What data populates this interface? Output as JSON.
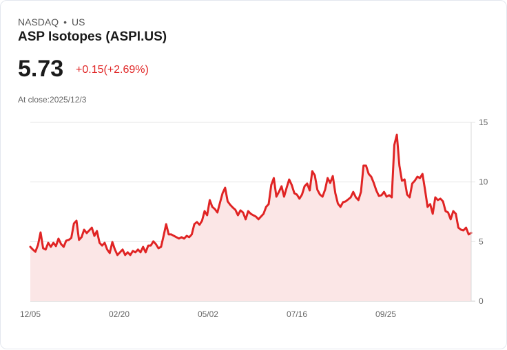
{
  "header": {
    "exchange": "NASDAQ",
    "separator": "•",
    "country": "US",
    "title": "ASP Isotopes (ASPI.US)",
    "price": "5.73",
    "change": "+0.15(+2.69%)",
    "close_label": "At close:2025/12/3"
  },
  "colors": {
    "line": "#e02424",
    "fill": "#fbe6e6",
    "up": "#e02424"
  },
  "chart_data": {
    "type": "area",
    "title": "ASP Isotopes (ASPI.US)",
    "xlabel": "",
    "ylabel": "",
    "ylim": [
      0,
      15
    ],
    "yticks": [
      "15",
      "10",
      "5",
      "0"
    ],
    "ytick_values": [
      15,
      10,
      5,
      0
    ],
    "xticks": [
      "12/05",
      "02/20",
      "05/02",
      "07/16",
      "09/25"
    ],
    "xtick_positions": [
      0,
      0.2016,
      0.4031,
      0.6047,
      0.8063
    ],
    "grid": true,
    "values": [
      4.56,
      4.33,
      4.15,
      4.73,
      5.77,
      4.44,
      4.33,
      4.9,
      4.56,
      4.9,
      4.62,
      5.25,
      4.79,
      4.56,
      5.08,
      5.14,
      5.31,
      6.52,
      6.75,
      5.14,
      5.37,
      6.0,
      5.71,
      5.94,
      6.17,
      5.48,
      5.89,
      4.9,
      4.67,
      4.9,
      4.33,
      4.04,
      4.96,
      4.33,
      3.87,
      4.1,
      4.33,
      3.87,
      4.1,
      3.87,
      4.21,
      4.1,
      4.33,
      4.1,
      4.56,
      4.1,
      4.67,
      4.67,
      5.02,
      4.79,
      4.44,
      4.56,
      5.48,
      6.46,
      5.6,
      5.6,
      5.48,
      5.37,
      5.25,
      5.37,
      5.25,
      5.48,
      5.37,
      5.6,
      6.46,
      6.64,
      6.41,
      6.75,
      7.56,
      7.21,
      8.48,
      7.91,
      7.73,
      7.44,
      8.25,
      9.06,
      9.52,
      8.37,
      8.08,
      7.85,
      7.67,
      7.21,
      7.62,
      7.44,
      6.87,
      7.56,
      7.33,
      7.21,
      7.1,
      6.87,
      7.1,
      7.33,
      7.91,
      8.14,
      9.75,
      10.33,
      8.77,
      9.17,
      9.64,
      8.77,
      9.52,
      10.21,
      9.75,
      9.06,
      8.94,
      8.6,
      8.94,
      9.64,
      9.87,
      9.29,
      10.91,
      10.56,
      9.35,
      8.94,
      8.77,
      9.35,
      10.33,
      9.92,
      10.5,
      9.06,
      8.19,
      7.91,
      8.31,
      8.37,
      8.54,
      8.71,
      9.17,
      8.71,
      8.48,
      9.17,
      11.37,
      11.37,
      10.68,
      10.44,
      9.92,
      9.29,
      8.83,
      8.89,
      9.17,
      8.77,
      8.89,
      8.71,
      13.1,
      13.96,
      11.37,
      10.1,
      10.21,
      8.94,
      8.71,
      9.87,
      10.1,
      10.44,
      10.33,
      10.68,
      9.35,
      7.91,
      8.14,
      7.33,
      8.71,
      8.48,
      8.6,
      8.37,
      7.56,
      7.44,
      6.87,
      7.56,
      7.33,
      6.17,
      6.0,
      5.94,
      6.17,
      5.6,
      5.73
    ]
  }
}
